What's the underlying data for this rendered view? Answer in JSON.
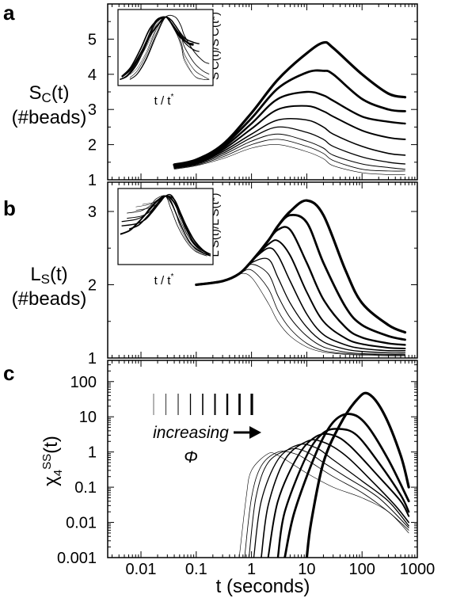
{
  "figure": {
    "panel_a": {
      "label": "a",
      "ylabel_line1": "S",
      "ylabel_sub": "C",
      "ylabel_tail": "(t)",
      "ylabel_line2": "(#beads)",
      "inset_xlabel": "t / t",
      "inset_xlabel_sup": "*",
      "inset_ylabel": "S C(t)/S C(t*)"
    },
    "panel_b": {
      "label": "b",
      "ylabel_line1": "L",
      "ylabel_sub": "S",
      "ylabel_tail": "(t)",
      "ylabel_line2": "(#beads)",
      "inset_xlabel": "t / t",
      "inset_xlabel_sup": "*",
      "inset_ylabel": "L S(t)/L S(t*)"
    },
    "panel_c": {
      "label": "c",
      "ylabel": "χ",
      "ylabel_sub": "4",
      "ylabel_sup": "SS",
      "ylabel_tail": "(t)",
      "annotation_line1": "increasing",
      "annotation_line2": "Φ"
    },
    "xlabel": "t (seconds)"
  },
  "chart_data": [
    {
      "panel": "a",
      "type": "line",
      "xscale": "log",
      "xlim": [
        0.0025,
        1000
      ],
      "ylim": [
        1,
        6
      ],
      "yticks": [
        "1",
        "2",
        "3",
        "4",
        "5"
      ],
      "xticks": [
        "0.01",
        "0.1",
        "1",
        "10",
        "100",
        "1000"
      ],
      "x": [
        0.04,
        0.1,
        0.3,
        1,
        3,
        10,
        20,
        30,
        100,
        300,
        600
      ],
      "series": [
        {
          "line_width": 0.6,
          "values": [
            1.3,
            1.4,
            1.6,
            1.9,
            2.0,
            1.8,
            1.6,
            1.4,
            1.2,
            1.15,
            1.15
          ]
        },
        {
          "line_width": 0.8,
          "values": [
            1.32,
            1.42,
            1.65,
            2.0,
            2.15,
            1.95,
            1.75,
            1.55,
            1.3,
            1.25,
            1.25
          ]
        },
        {
          "line_width": 1.0,
          "values": [
            1.33,
            1.44,
            1.7,
            2.1,
            2.3,
            2.1,
            1.9,
            1.7,
            1.45,
            1.35,
            1.3
          ]
        },
        {
          "line_width": 1.3,
          "values": [
            1.35,
            1.46,
            1.75,
            2.2,
            2.5,
            2.35,
            2.15,
            1.95,
            1.65,
            1.5,
            1.45
          ]
        },
        {
          "line_width": 1.6,
          "values": [
            1.36,
            1.48,
            1.8,
            2.3,
            2.7,
            2.7,
            2.5,
            2.3,
            1.95,
            1.75,
            1.7
          ]
        },
        {
          "line_width": 2.0,
          "values": [
            1.38,
            1.5,
            1.85,
            2.45,
            3.0,
            3.1,
            2.95,
            2.8,
            2.4,
            2.2,
            2.15
          ]
        },
        {
          "line_width": 2.4,
          "values": [
            1.4,
            1.52,
            1.9,
            2.6,
            3.3,
            3.5,
            3.4,
            3.25,
            2.8,
            2.65,
            2.6
          ]
        },
        {
          "line_width": 2.8,
          "values": [
            1.42,
            1.55,
            1.95,
            2.75,
            3.6,
            4.05,
            4.1,
            4.0,
            3.3,
            3.0,
            2.95
          ]
        },
        {
          "line_width": 3.2,
          "values": [
            1.43,
            1.57,
            2.0,
            2.9,
            3.85,
            4.6,
            4.9,
            4.75,
            4.0,
            3.45,
            3.35
          ]
        }
      ]
    },
    {
      "panel": "b",
      "type": "line",
      "xscale": "log",
      "xlim": [
        0.0025,
        1000
      ],
      "ylim": [
        1,
        3.4
      ],
      "yticks": [
        "1",
        "2",
        "3"
      ],
      "x": [
        0.1,
        0.3,
        0.6,
        1,
        2,
        3,
        5,
        10,
        20,
        50,
        100,
        300,
        600
      ],
      "series": [
        {
          "line_width": 0.6,
          "values": [
            2.0,
            2.05,
            2.15,
            2.1,
            1.75,
            1.5,
            1.3,
            1.15,
            1.08,
            1.05,
            1.04,
            1.03,
            1.03
          ]
        },
        {
          "line_width": 0.8,
          "values": [
            2.0,
            2.05,
            2.15,
            2.2,
            1.95,
            1.65,
            1.4,
            1.2,
            1.1,
            1.06,
            1.05,
            1.04,
            1.04
          ]
        },
        {
          "line_width": 1.0,
          "values": [
            2.0,
            2.05,
            2.15,
            2.28,
            2.15,
            1.85,
            1.55,
            1.3,
            1.15,
            1.08,
            1.06,
            1.05,
            1.05
          ]
        },
        {
          "line_width": 1.3,
          "values": [
            2.0,
            2.05,
            2.15,
            2.3,
            2.35,
            2.1,
            1.75,
            1.42,
            1.22,
            1.12,
            1.09,
            1.07,
            1.07
          ]
        },
        {
          "line_width": 1.6,
          "values": [
            2.0,
            2.05,
            2.15,
            2.32,
            2.5,
            2.4,
            2.05,
            1.6,
            1.32,
            1.18,
            1.13,
            1.1,
            1.1
          ]
        },
        {
          "line_width": 2.0,
          "values": [
            2.0,
            2.05,
            2.15,
            2.32,
            2.55,
            2.6,
            2.4,
            1.9,
            1.5,
            1.27,
            1.19,
            1.14,
            1.13
          ]
        },
        {
          "line_width": 2.4,
          "values": [
            2.0,
            2.05,
            2.15,
            2.32,
            2.6,
            2.75,
            2.75,
            2.3,
            1.8,
            1.42,
            1.28,
            1.2,
            1.18
          ]
        },
        {
          "line_width": 2.8,
          "values": [
            2.0,
            2.05,
            2.15,
            2.32,
            2.6,
            2.8,
            2.95,
            2.85,
            2.3,
            1.7,
            1.45,
            1.3,
            1.25
          ]
        },
        {
          "line_width": 3.2,
          "values": [
            2.0,
            2.05,
            2.15,
            2.32,
            2.6,
            2.8,
            3.0,
            3.15,
            2.95,
            2.2,
            1.75,
            1.45,
            1.35
          ]
        }
      ]
    },
    {
      "panel": "c",
      "type": "line",
      "xscale": "log",
      "yscale": "log",
      "xlim": [
        0.0025,
        1000
      ],
      "ylim": [
        0.001,
        400
      ],
      "yticks": [
        "0.001",
        "0.01",
        "0.1",
        "1",
        "10",
        "100"
      ],
      "series": [
        {
          "line_width": 0.6,
          "x": [
            0.6,
            0.8,
            1,
            2,
            3,
            5,
            10,
            30,
            100,
            300,
            700
          ],
          "values": [
            0.001,
            0.05,
            0.3,
            0.9,
            0.8,
            0.5,
            0.25,
            0.1,
            0.05,
            0.02,
            0.005
          ]
        },
        {
          "line_width": 0.8,
          "x": [
            0.75,
            1,
            1.5,
            3,
            6,
            10,
            30,
            100,
            300,
            700
          ],
          "values": [
            0.001,
            0.05,
            0.4,
            1.0,
            0.9,
            0.6,
            0.2,
            0.07,
            0.02,
            0.006
          ]
        },
        {
          "line_width": 1.0,
          "x": [
            0.9,
            1.2,
            2,
            5,
            10,
            20,
            50,
            200,
            700
          ],
          "values": [
            0.001,
            0.05,
            0.5,
            1.2,
            1.0,
            0.5,
            0.2,
            0.05,
            0.007
          ]
        },
        {
          "line_width": 1.3,
          "x": [
            1.1,
            1.5,
            3,
            7,
            15,
            30,
            100,
            300,
            700
          ],
          "values": [
            0.001,
            0.04,
            0.6,
            1.6,
            1.3,
            0.6,
            0.15,
            0.04,
            0.008
          ]
        },
        {
          "line_width": 1.6,
          "x": [
            1.5,
            2,
            4,
            10,
            20,
            50,
            150,
            400,
            700
          ],
          "values": [
            0.001,
            0.03,
            0.6,
            2.0,
            1.9,
            0.8,
            0.15,
            0.03,
            0.01
          ]
        },
        {
          "line_width": 2.0,
          "x": [
            2,
            3,
            7,
            15,
            30,
            60,
            200,
            500,
            700
          ],
          "values": [
            0.001,
            0.04,
            0.8,
            2.8,
            3.0,
            1.5,
            0.2,
            0.04,
            0.015
          ]
        },
        {
          "line_width": 2.4,
          "x": [
            3,
            4,
            10,
            20,
            40,
            80,
            200,
            500,
            700
          ],
          "values": [
            0.001,
            0.02,
            0.8,
            3.5,
            4.5,
            3.0,
            0.5,
            0.06,
            0.02
          ]
        },
        {
          "line_width": 2.8,
          "x": [
            4,
            6,
            15,
            30,
            60,
            120,
            300,
            700
          ],
          "values": [
            0.001,
            0.02,
            1.0,
            7.0,
            12.0,
            6.0,
            0.6,
            0.04
          ]
        },
        {
          "line_width": 3.2,
          "x": [
            10,
            12,
            20,
            40,
            80,
            130,
            250,
            500,
            700
          ],
          "values": [
            0.001,
            0.01,
            0.5,
            6.0,
            30.0,
            45.0,
            12.0,
            0.8,
            0.1
          ]
        }
      ]
    }
  ]
}
